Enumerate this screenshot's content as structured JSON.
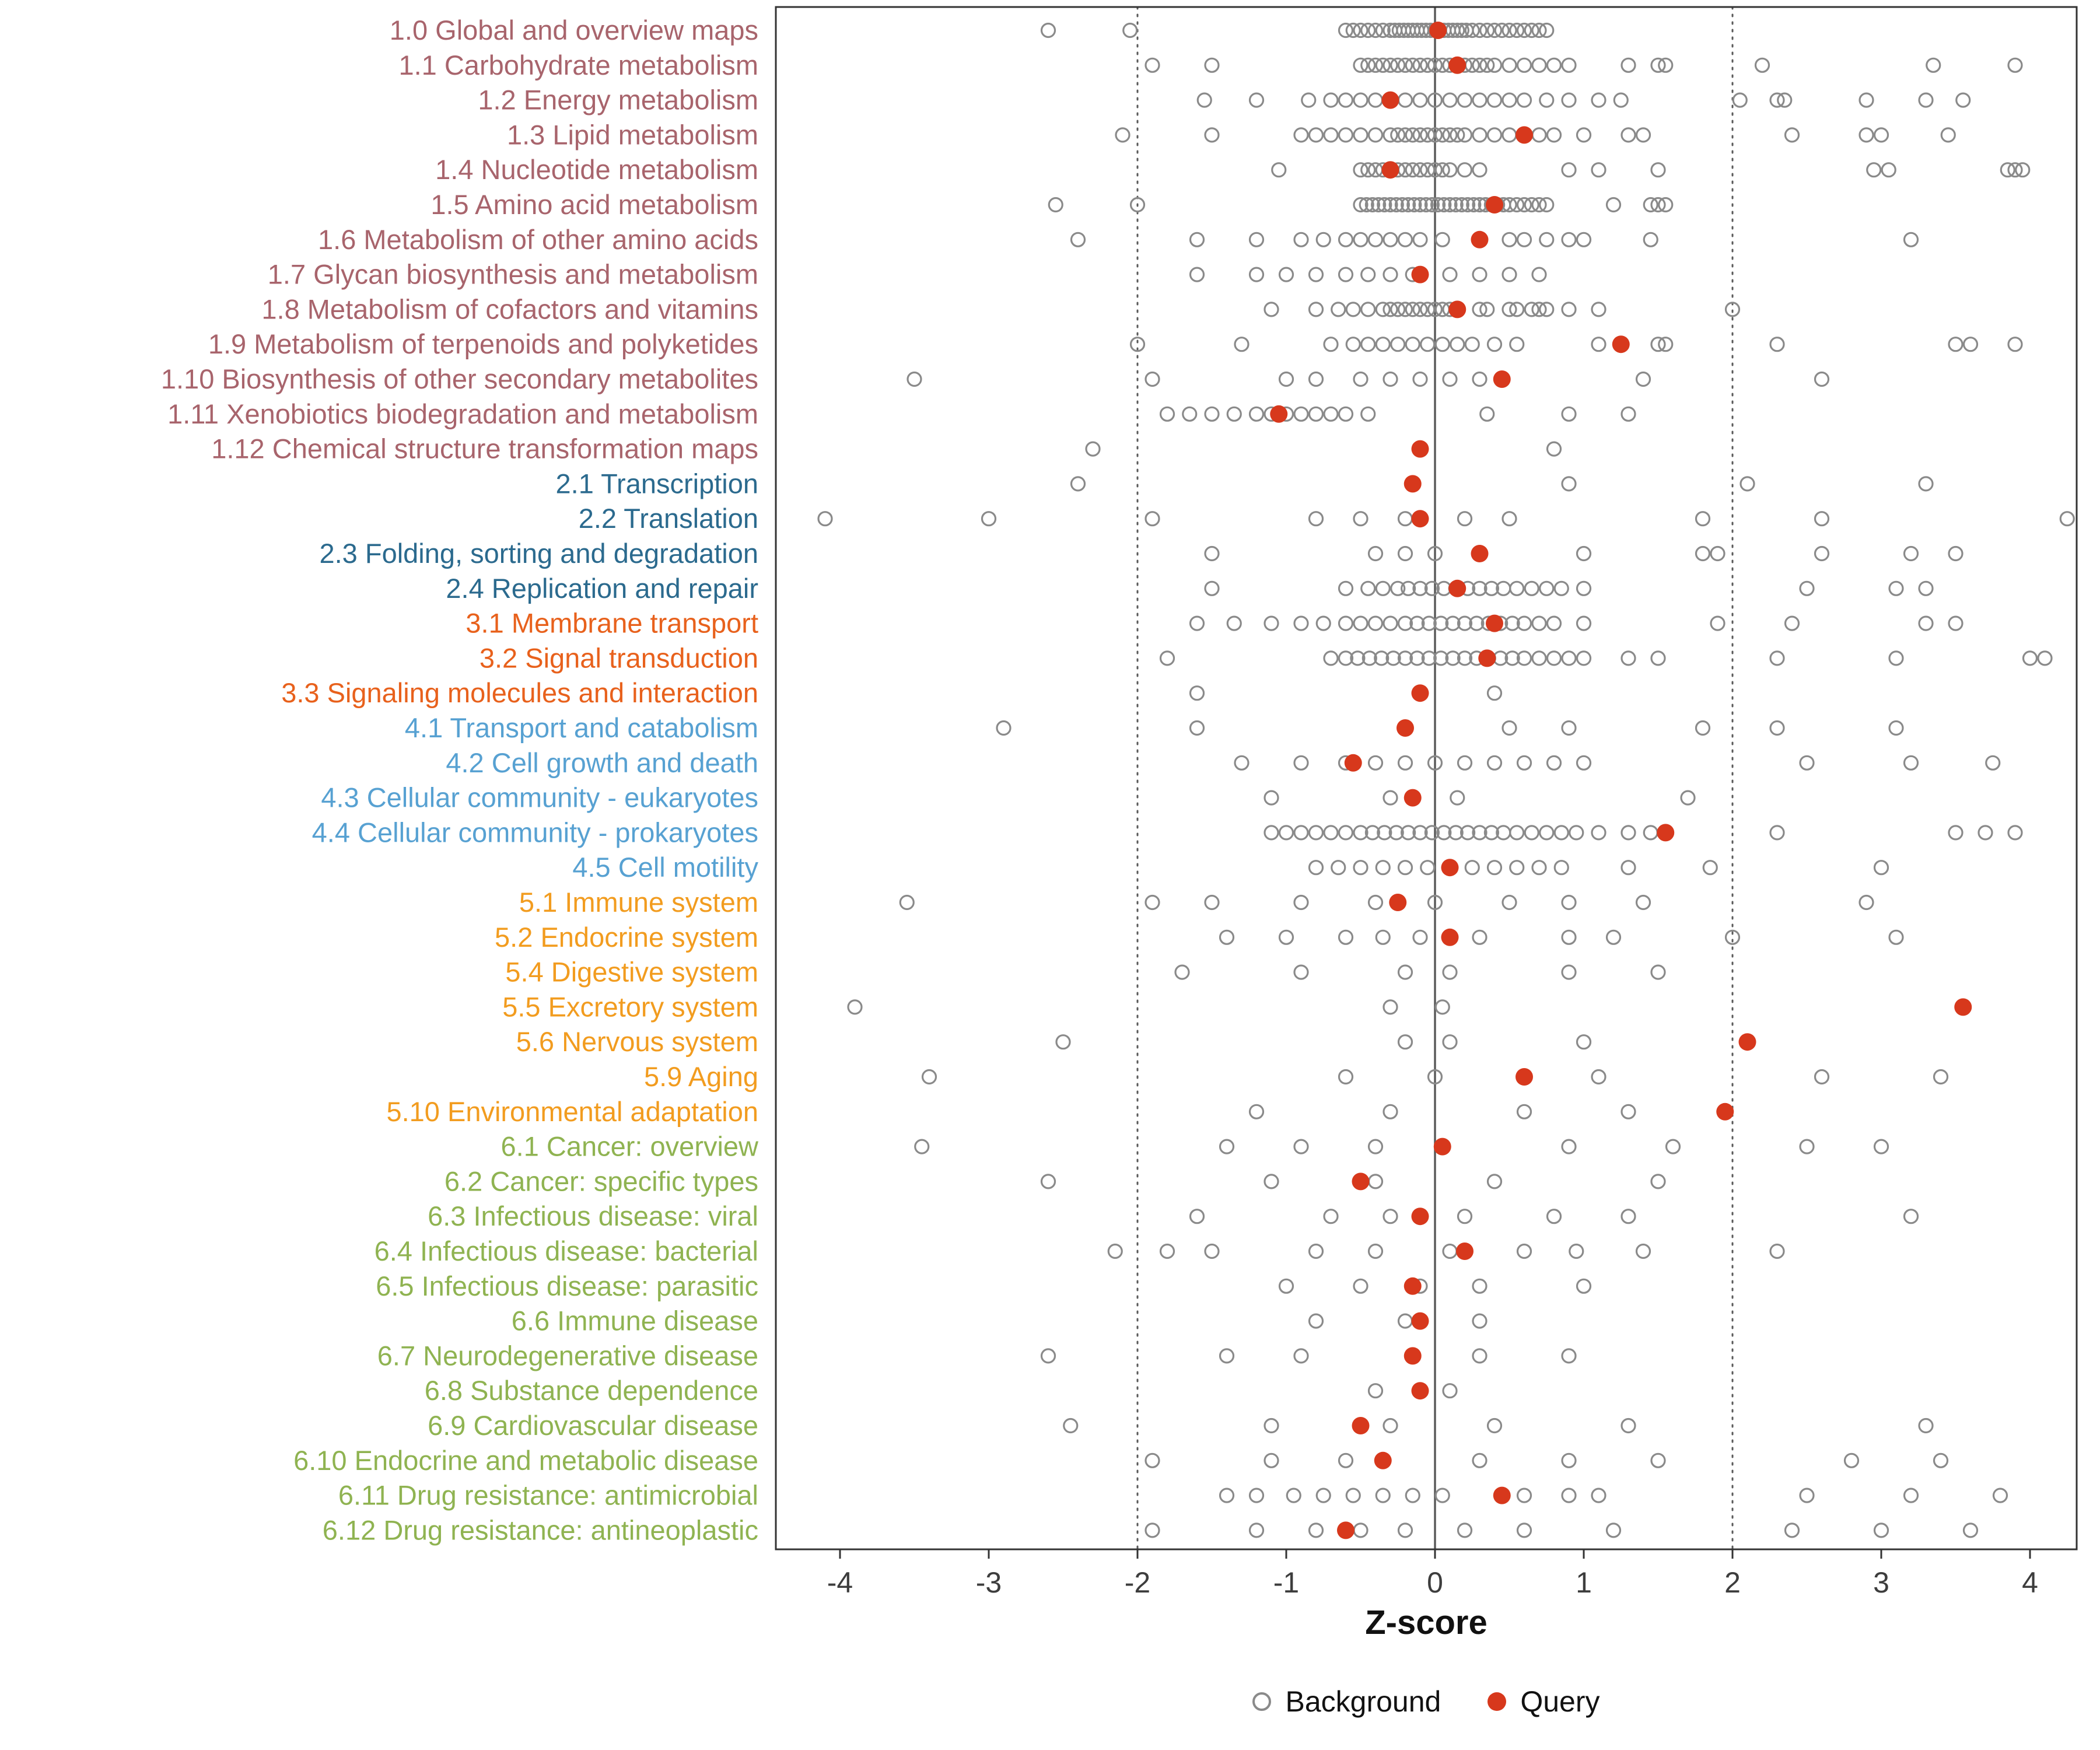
{
  "chart_data": {
    "type": "scatter",
    "title": "",
    "xlabel": "Z-score",
    "xlim": [
      -4.4,
      4.3
    ],
    "x_ticks": [
      -4,
      -3,
      -2,
      -1,
      0,
      1,
      2,
      3,
      4
    ],
    "grid": false,
    "reference_lines": {
      "solid": [
        0
      ],
      "dotted": [
        -2,
        2
      ]
    },
    "background_color": "#8A8A8A",
    "query_color": "#D7381C",
    "group_colors": {
      "1": "#A8646C",
      "2": "#2B6A8E",
      "3": "#E8611C",
      "4": "#57A1D2",
      "5": "#F29C1F",
      "6": "#8FB351"
    },
    "legend": [
      {
        "label": "Background",
        "marker": "open-circle",
        "color": "#8A8A8A"
      },
      {
        "label": "Query",
        "marker": "filled-circle",
        "color": "#D7381C"
      }
    ],
    "rows": [
      {
        "label": "1.0 Global and overview maps",
        "group": "1",
        "query": 0.02,
        "background": [
          -2.6,
          -2.05,
          -0.6,
          -0.55,
          -0.5,
          -0.45,
          -0.4,
          -0.35,
          -0.3,
          -0.27,
          -0.24,
          -0.21,
          -0.18,
          -0.15,
          -0.12,
          -0.09,
          -0.06,
          -0.03,
          0,
          0.03,
          0.06,
          0.09,
          0.12,
          0.15,
          0.18,
          0.21,
          0.25,
          0.3,
          0.35,
          0.4,
          0.45,
          0.5,
          0.55,
          0.6,
          0.65,
          0.7,
          0.75
        ]
      },
      {
        "label": "1.1 Carbohydrate metabolism",
        "group": "1",
        "query": 0.15,
        "background": [
          -1.9,
          -1.5,
          -0.5,
          -0.45,
          -0.4,
          -0.35,
          -0.3,
          -0.25,
          -0.2,
          -0.15,
          -0.1,
          -0.05,
          0,
          0.05,
          0.1,
          0.15,
          0.2,
          0.25,
          0.3,
          0.35,
          0.4,
          0.5,
          0.6,
          0.7,
          0.8,
          0.9,
          1.3,
          1.5,
          1.55,
          2.2,
          3.35,
          3.9
        ]
      },
      {
        "label": "1.2 Energy metabolism",
        "group": "1",
        "query": -0.3,
        "background": [
          -1.55,
          -1.2,
          -0.85,
          -0.7,
          -0.6,
          -0.5,
          -0.4,
          -0.3,
          -0.2,
          -0.1,
          0,
          0.1,
          0.2,
          0.3,
          0.4,
          0.5,
          0.6,
          0.75,
          0.9,
          1.1,
          1.25,
          2.05,
          2.3,
          2.35,
          2.9,
          3.3,
          3.55
        ]
      },
      {
        "label": "1.3 Lipid metabolism",
        "group": "1",
        "query": 0.6,
        "background": [
          -2.1,
          -1.5,
          -0.9,
          -0.8,
          -0.7,
          -0.6,
          -0.5,
          -0.4,
          -0.3,
          -0.25,
          -0.2,
          -0.15,
          -0.1,
          -0.05,
          0,
          0.05,
          0.1,
          0.15,
          0.2,
          0.3,
          0.4,
          0.5,
          0.7,
          0.8,
          1.0,
          1.3,
          1.4,
          2.4,
          2.9,
          3.0,
          3.45
        ]
      },
      {
        "label": "1.4 Nucleotide metabolism",
        "group": "1",
        "query": -0.3,
        "background": [
          -1.05,
          -0.5,
          -0.45,
          -0.4,
          -0.35,
          -0.3,
          -0.25,
          -0.2,
          -0.15,
          -0.1,
          -0.05,
          0,
          0.05,
          0.1,
          0.2,
          0.3,
          0.9,
          1.1,
          1.5,
          2.95,
          3.05,
          3.85,
          3.9,
          3.95
        ]
      },
      {
        "label": "1.5 Amino acid metabolism",
        "group": "1",
        "query": 0.4,
        "background": [
          -2.55,
          -2.0,
          -0.5,
          -0.46,
          -0.42,
          -0.38,
          -0.34,
          -0.3,
          -0.26,
          -0.22,
          -0.18,
          -0.14,
          -0.1,
          -0.06,
          -0.02,
          0.02,
          0.06,
          0.1,
          0.14,
          0.18,
          0.22,
          0.26,
          0.3,
          0.34,
          0.38,
          0.42,
          0.46,
          0.5,
          0.55,
          0.6,
          0.65,
          0.7,
          0.75,
          1.2,
          1.45,
          1.5,
          1.55
        ]
      },
      {
        "label": "1.6 Metabolism of other amino acids",
        "group": "1",
        "query": 0.3,
        "background": [
          -2.4,
          -1.6,
          -1.2,
          -0.9,
          -0.75,
          -0.6,
          -0.5,
          -0.4,
          -0.3,
          -0.2,
          -0.1,
          0.05,
          0.3,
          0.5,
          0.6,
          0.75,
          0.9,
          1.0,
          1.45,
          3.2
        ]
      },
      {
        "label": "1.7 Glycan biosynthesis and metabolism",
        "group": "1",
        "query": -0.1,
        "background": [
          -1.6,
          -1.2,
          -1.0,
          -0.8,
          -0.6,
          -0.45,
          -0.3,
          -0.15,
          0.1,
          0.3,
          0.5,
          0.7
        ]
      },
      {
        "label": "1.8 Metabolism of cofactors and vitamins",
        "group": "1",
        "query": 0.15,
        "background": [
          -1.1,
          -0.8,
          -0.65,
          -0.55,
          -0.45,
          -0.35,
          -0.3,
          -0.25,
          -0.2,
          -0.15,
          -0.1,
          -0.05,
          0,
          0.05,
          0.1,
          0.3,
          0.35,
          0.5,
          0.55,
          0.65,
          0.7,
          0.75,
          0.9,
          1.1,
          2.0
        ]
      },
      {
        "label": "1.9 Metabolism of terpenoids and polyketides",
        "group": "1",
        "query": 1.25,
        "background": [
          -2.0,
          -1.3,
          -0.7,
          -0.55,
          -0.45,
          -0.35,
          -0.25,
          -0.15,
          -0.05,
          0.05,
          0.15,
          0.25,
          0.4,
          0.55,
          1.1,
          1.5,
          1.55,
          2.3,
          3.5,
          3.6,
          3.9
        ]
      },
      {
        "label": "1.10 Biosynthesis of other secondary metabolites",
        "group": "1",
        "query": 0.45,
        "background": [
          -3.5,
          -1.9,
          -1.0,
          -0.8,
          -0.5,
          -0.3,
          -0.1,
          0.1,
          0.3,
          1.4,
          2.6
        ]
      },
      {
        "label": "1.11 Xenobiotics biodegradation and metabolism",
        "group": "1",
        "query": -1.05,
        "background": [
          -1.8,
          -1.65,
          -1.5,
          -1.35,
          -1.2,
          -1.1,
          -1.0,
          -0.9,
          -0.8,
          -0.7,
          -0.6,
          -0.45,
          0.35,
          0.9,
          1.3
        ]
      },
      {
        "label": "1.12 Chemical structure transformation maps",
        "group": "1",
        "query": -0.1,
        "background": [
          -2.3,
          0.8
        ]
      },
      {
        "label": "2.1 Transcription",
        "group": "2",
        "query": -0.15,
        "background": [
          -2.4,
          0.9,
          2.1,
          3.3
        ]
      },
      {
        "label": "2.2 Translation",
        "group": "2",
        "query": -0.1,
        "background": [
          -4.1,
          -3.0,
          -1.9,
          -0.8,
          -0.5,
          -0.2,
          0.2,
          0.5,
          1.8,
          2.6,
          4.25
        ]
      },
      {
        "label": "2.3 Folding, sorting and degradation",
        "group": "2",
        "query": 0.3,
        "background": [
          -1.5,
          -0.4,
          -0.2,
          0.0,
          0.3,
          1.0,
          1.8,
          1.9,
          2.6,
          3.2,
          3.5
        ]
      },
      {
        "label": "2.4 Replication and repair",
        "group": "2",
        "query": 0.15,
        "background": [
          -1.5,
          -0.6,
          -0.45,
          -0.35,
          -0.25,
          -0.18,
          -0.1,
          -0.02,
          0.06,
          0.14,
          0.22,
          0.3,
          0.38,
          0.46,
          0.55,
          0.65,
          0.75,
          0.85,
          1.0,
          2.5,
          3.1,
          3.3
        ]
      },
      {
        "label": "3.1 Membrane transport",
        "group": "3",
        "query": 0.4,
        "background": [
          -1.6,
          -1.35,
          -1.1,
          -0.9,
          -0.75,
          -0.6,
          -0.5,
          -0.4,
          -0.3,
          -0.2,
          -0.12,
          -0.04,
          0.04,
          0.12,
          0.2,
          0.28,
          0.36,
          0.44,
          0.52,
          0.6,
          0.7,
          0.8,
          1.0,
          1.9,
          2.4,
          3.3,
          3.5
        ]
      },
      {
        "label": "3.2 Signal transduction",
        "group": "3",
        "query": 0.35,
        "background": [
          -1.8,
          -0.7,
          -0.6,
          -0.52,
          -0.44,
          -0.36,
          -0.28,
          -0.2,
          -0.12,
          -0.04,
          0.04,
          0.12,
          0.2,
          0.28,
          0.36,
          0.44,
          0.52,
          0.6,
          0.7,
          0.8,
          0.9,
          1.0,
          1.3,
          1.5,
          2.3,
          3.1,
          4.0,
          4.1
        ]
      },
      {
        "label": "3.3 Signaling molecules and interaction",
        "group": "3",
        "query": -0.1,
        "background": [
          -1.6,
          0.4
        ]
      },
      {
        "label": "4.1 Transport and catabolism",
        "group": "4",
        "query": -0.2,
        "background": [
          -2.9,
          -1.6,
          -0.2,
          0.5,
          0.9,
          1.8,
          2.3,
          3.1
        ]
      },
      {
        "label": "4.2 Cell growth and death",
        "group": "4",
        "query": -0.55,
        "background": [
          -1.3,
          -0.9,
          -0.6,
          -0.4,
          -0.2,
          0.0,
          0.2,
          0.4,
          0.6,
          0.8,
          1.0,
          2.5,
          3.2,
          3.75
        ]
      },
      {
        "label": "4.3 Cellular community - eukaryotes",
        "group": "4",
        "query": -0.15,
        "background": [
          -1.1,
          -0.3,
          0.15,
          1.7
        ]
      },
      {
        "label": "4.4 Cellular community - prokaryotes",
        "group": "4",
        "query": 1.55,
        "background": [
          -1.1,
          -1.0,
          -0.9,
          -0.8,
          -0.7,
          -0.6,
          -0.5,
          -0.42,
          -0.34,
          -0.26,
          -0.18,
          -0.1,
          -0.02,
          0.06,
          0.14,
          0.22,
          0.3,
          0.38,
          0.46,
          0.55,
          0.65,
          0.75,
          0.85,
          0.95,
          1.1,
          1.3,
          1.45,
          2.3,
          3.5,
          3.7,
          3.9
        ]
      },
      {
        "label": "4.5 Cell motility",
        "group": "4",
        "query": 0.1,
        "background": [
          -0.8,
          -0.65,
          -0.5,
          -0.35,
          -0.2,
          -0.05,
          0.1,
          0.25,
          0.4,
          0.55,
          0.7,
          0.85,
          1.3,
          1.85,
          3.0
        ]
      },
      {
        "label": "5.1 Immune system",
        "group": "5",
        "query": -0.25,
        "background": [
          -3.55,
          -1.9,
          -1.5,
          -0.9,
          -0.4,
          0.0,
          0.5,
          0.9,
          1.4,
          2.9
        ]
      },
      {
        "label": "5.2 Endocrine system",
        "group": "5",
        "query": 0.1,
        "background": [
          -1.4,
          -1.0,
          -0.6,
          -0.35,
          -0.1,
          0.3,
          0.9,
          1.2,
          2.0,
          3.1
        ]
      },
      {
        "label": "5.4 Digestive system",
        "group": "5",
        "query": null,
        "background": [
          -1.7,
          -0.9,
          -0.2,
          0.1,
          0.9,
          1.5
        ]
      },
      {
        "label": "5.5 Excretory system",
        "group": "5",
        "query": 3.55,
        "background": [
          -3.9,
          -0.3,
          0.05
        ]
      },
      {
        "label": "5.6 Nervous system",
        "group": "5",
        "query": 2.1,
        "background": [
          -2.5,
          -0.2,
          0.1,
          1.0
        ]
      },
      {
        "label": "5.9 Aging",
        "group": "5",
        "query": 0.6,
        "background": [
          -3.4,
          -0.6,
          0.0,
          1.1,
          2.6,
          3.4
        ]
      },
      {
        "label": "5.10 Environmental adaptation",
        "group": "5",
        "query": 1.95,
        "background": [
          -1.2,
          -0.3,
          0.6,
          1.3
        ]
      },
      {
        "label": "6.1 Cancer: overview",
        "group": "6",
        "query": 0.05,
        "background": [
          -3.45,
          -1.4,
          -0.9,
          -0.4,
          0.9,
          1.6,
          2.5,
          3.0
        ]
      },
      {
        "label": "6.2 Cancer: specific types",
        "group": "6",
        "query": -0.5,
        "background": [
          -2.6,
          -1.1,
          -0.4,
          0.4,
          1.5
        ]
      },
      {
        "label": "6.3 Infectious disease: viral",
        "group": "6",
        "query": -0.1,
        "background": [
          -1.6,
          -0.7,
          -0.3,
          0.2,
          0.8,
          1.3,
          3.2
        ]
      },
      {
        "label": "6.4 Infectious disease: bacterial",
        "group": "6",
        "query": 0.2,
        "background": [
          -2.15,
          -1.8,
          -1.5,
          -0.8,
          -0.4,
          0.1,
          0.6,
          0.95,
          1.4,
          2.3
        ]
      },
      {
        "label": "6.5 Infectious disease: parasitic",
        "group": "6",
        "query": -0.15,
        "background": [
          -1.0,
          -0.5,
          -0.1,
          0.3,
          1.0
        ]
      },
      {
        "label": "6.6 Immune disease",
        "group": "6",
        "query": -0.1,
        "background": [
          -0.8,
          -0.2,
          0.3
        ]
      },
      {
        "label": "6.7 Neurodegenerative disease",
        "group": "6",
        "query": -0.15,
        "background": [
          -2.6,
          -1.4,
          -0.9,
          0.3,
          0.9
        ]
      },
      {
        "label": "6.8 Substance dependence",
        "group": "6",
        "query": -0.1,
        "background": [
          -0.4,
          0.1
        ]
      },
      {
        "label": "6.9 Cardiovascular disease",
        "group": "6",
        "query": -0.5,
        "background": [
          -2.45,
          -1.1,
          -0.3,
          0.4,
          1.3,
          3.3
        ]
      },
      {
        "label": "6.10 Endocrine and metabolic disease",
        "group": "6",
        "query": -0.35,
        "background": [
          -1.9,
          -1.1,
          -0.6,
          0.3,
          0.9,
          1.5,
          2.8,
          3.4
        ]
      },
      {
        "label": "6.11 Drug resistance: antimicrobial",
        "group": "6",
        "query": 0.45,
        "background": [
          -1.4,
          -1.2,
          -0.95,
          -0.75,
          -0.55,
          -0.35,
          -0.15,
          0.05,
          0.6,
          0.9,
          1.1,
          2.5,
          3.2,
          3.8
        ]
      },
      {
        "label": "6.12 Drug resistance: antineoplastic",
        "group": "6",
        "query": -0.6,
        "background": [
          -1.9,
          -1.2,
          -0.8,
          -0.5,
          -0.2,
          0.2,
          0.6,
          1.2,
          2.4,
          3.0,
          3.6
        ]
      }
    ]
  }
}
